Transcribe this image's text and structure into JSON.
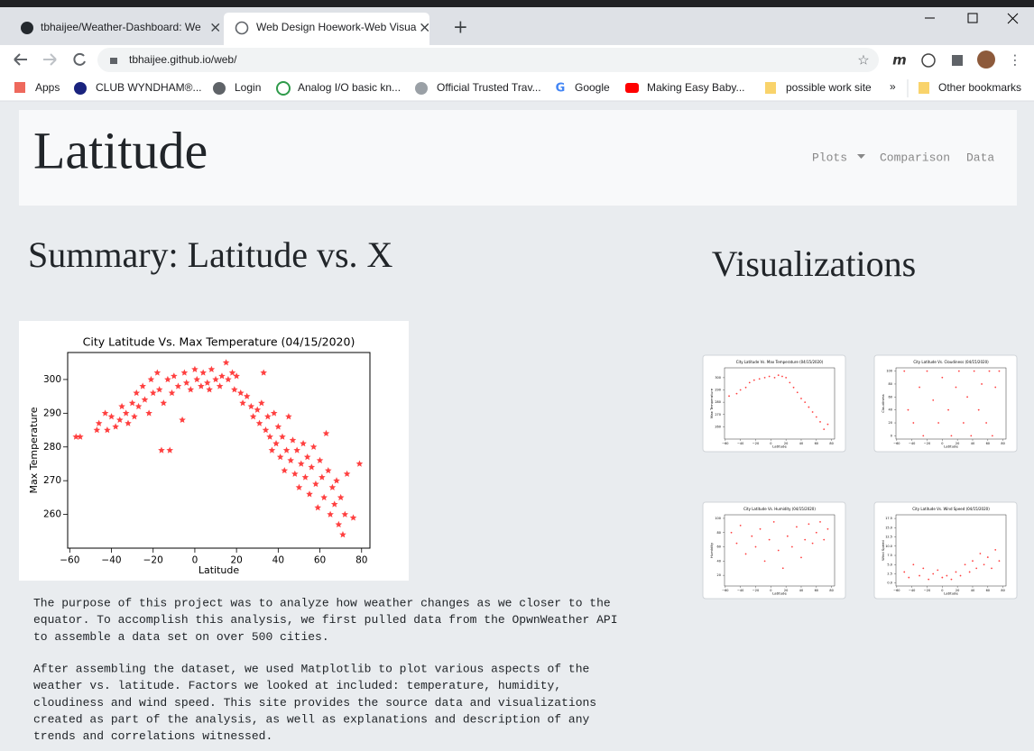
{
  "browser": {
    "tabs": [
      "tbhaijee/Weather-Dashboard: We",
      "Web Design Hoework-Web Visua"
    ],
    "url": "tbhaijee.github.io/web/",
    "bookmarks": [
      "Apps",
      "CLUB WYNDHAM®...",
      "Login",
      "Analog I/O basic kn...",
      "Official Trusted Trav...",
      "Google",
      "Making Easy Baby...",
      "possible work site"
    ],
    "more": "»",
    "other": "Other bookmarks"
  },
  "page": {
    "brand": "Latitude",
    "nav": [
      "Plots",
      "Comparison",
      "Data"
    ],
    "summary_heading": "Summary: Latitude vs. X",
    "visualizations_heading": "Visualizations",
    "paragraphs": [
      [
        "The purpose of this project was to analyze how weather changes as we closer to the",
        "equator. To accomplish this analysis, we first pulled data from the OpwnWeather API",
        "to assemble a data set on over 500 cities."
      ],
      [
        "After assembling the dataset, we used Matplotlib to plot various aspects of the",
        "weather vs. latitude. Factors we looked at included: temperature, humidity,",
        "cloudiness and wind speed. This site provides the source data and visualizations",
        "created as part of the analysis, as well as explanations and description of any",
        "trends and correlations witnessed."
      ]
    ]
  },
  "chart_data": [
    {
      "type": "scatter",
      "title": "City Latitude Vs. Max Temperature (04/15/2020)",
      "xlabel": "Latitude",
      "ylabel": "Max Temperature",
      "color": "#ff0000",
      "marker": "star",
      "x": [
        -57,
        -55,
        -47,
        -46,
        -43,
        -42,
        -40,
        -38,
        -36,
        -35,
        -33,
        -32,
        -30,
        -29,
        -28,
        -27,
        -25,
        -24,
        -22,
        -21,
        -20,
        -18,
        -17,
        -16,
        -15,
        -13,
        -12,
        -11,
        -10,
        -8,
        -6,
        -5,
        -4,
        -2,
        0,
        1,
        3,
        4,
        6,
        7,
        8,
        10,
        12,
        13,
        15,
        16,
        18,
        19,
        20,
        22,
        23,
        25,
        27,
        28,
        30,
        31,
        32,
        33,
        34,
        35,
        36,
        37,
        38,
        39,
        40,
        41,
        42,
        43,
        44,
        45,
        46,
        47,
        48,
        49,
        50,
        51,
        52,
        53,
        54,
        55,
        56,
        57,
        58,
        59,
        60,
        61,
        62,
        63,
        64,
        65,
        66,
        67,
        68,
        69,
        70,
        71,
        72,
        73,
        76,
        79
      ],
      "values": [
        283,
        283,
        285,
        287,
        290,
        285,
        289,
        286,
        288,
        292,
        290,
        287,
        293,
        289,
        296,
        292,
        298,
        294,
        290,
        300,
        296,
        302,
        297,
        279,
        293,
        300,
        279,
        296,
        301,
        298,
        288,
        302,
        299,
        297,
        303,
        300,
        298,
        302,
        299,
        297,
        303,
        300,
        298,
        301,
        305,
        300,
        302,
        297,
        301,
        296,
        293,
        295,
        292,
        289,
        291,
        287,
        293,
        302,
        285,
        289,
        283,
        279,
        290,
        281,
        286,
        277,
        283,
        273,
        279,
        289,
        276,
        282,
        272,
        279,
        268,
        275,
        281,
        271,
        277,
        266,
        274,
        280,
        269,
        262,
        276,
        271,
        265,
        284,
        273,
        260,
        268,
        263,
        270,
        257,
        265,
        254,
        260,
        272,
        259,
        275
      ],
      "xlim": [
        -61,
        84
      ],
      "ylim": [
        250,
        308
      ],
      "xticks": [
        {
          "value": -60,
          "label": "−60"
        },
        {
          "value": -40,
          "label": "−40"
        },
        {
          "value": -20,
          "label": "−20"
        },
        0,
        20,
        40,
        60,
        80
      ],
      "yticks": [
        260,
        270,
        280,
        290,
        300
      ]
    },
    {
      "type": "scatter",
      "title": "City Latitude Vs. Max Temperature (04/15/2020)",
      "xlabel": "Latitude",
      "ylabel": "Max Temperature",
      "color": "#ff0000",
      "marker": "dot",
      "x": [
        -55,
        -45,
        -40,
        -33,
        -28,
        -22,
        -15,
        -8,
        -2,
        5,
        10,
        15,
        20,
        25,
        30,
        35,
        40,
        45,
        50,
        55,
        60,
        65,
        70,
        75
      ],
      "values": [
        285,
        287,
        290,
        292,
        296,
        298,
        299,
        300,
        301,
        300,
        302,
        301,
        300,
        296,
        292,
        288,
        283,
        280,
        276,
        272,
        268,
        264,
        258,
        262
      ],
      "xlim": [
        -61,
        84
      ],
      "ylim": [
        250,
        308
      ],
      "xticks": [
        {
          "value": -60,
          "label": "−60"
        },
        {
          "value": -40,
          "label": "−40"
        },
        {
          "value": -20,
          "label": "−20"
        },
        0,
        20,
        40,
        60,
        80
      ],
      "yticks": [
        260,
        270,
        280,
        290,
        300
      ]
    },
    {
      "type": "scatter",
      "title": "City Latitude Vs. Cloudiness (04/15/2020)",
      "xlabel": "Latitude",
      "ylabel": "Cloudiness",
      "color": "#ff0000",
      "marker": "dot",
      "x": [
        -50,
        -45,
        -38,
        -30,
        -25,
        -20,
        -12,
        -5,
        0,
        8,
        12,
        18,
        22,
        28,
        33,
        38,
        42,
        48,
        52,
        58,
        62,
        66,
        70,
        75
      ],
      "values": [
        100,
        40,
        20,
        75,
        0,
        100,
        55,
        20,
        90,
        40,
        0,
        75,
        100,
        20,
        60,
        0,
        100,
        40,
        80,
        20,
        100,
        0,
        75,
        100
      ],
      "xlim": [
        -61,
        84
      ],
      "ylim": [
        -5,
        105
      ],
      "xticks": [
        {
          "value": -60,
          "label": "−60"
        },
        {
          "value": -40,
          "label": "−40"
        },
        {
          "value": -20,
          "label": "−20"
        },
        0,
        20,
        40,
        60,
        80
      ],
      "yticks": [
        0,
        20,
        40,
        60,
        80,
        100
      ]
    },
    {
      "type": "scatter",
      "title": "City Latitude Vs. Humidity (04/15/2020)",
      "xlabel": "Latitude",
      "ylabel": "Humidity",
      "color": "#ff0000",
      "marker": "dot",
      "x": [
        -52,
        -45,
        -40,
        -33,
        -25,
        -20,
        -14,
        -8,
        -2,
        4,
        10,
        16,
        22,
        28,
        34,
        40,
        45,
        50,
        55,
        60,
        65,
        70,
        75
      ],
      "values": [
        80,
        65,
        90,
        50,
        75,
        60,
        85,
        40,
        70,
        95,
        55,
        30,
        75,
        60,
        88,
        45,
        70,
        92,
        65,
        80,
        95,
        70,
        85
      ],
      "xlim": [
        -61,
        84
      ],
      "ylim": [
        5,
        105
      ],
      "xticks": [
        {
          "value": -60,
          "label": "−60"
        },
        {
          "value": -40,
          "label": "−40"
        },
        {
          "value": -20,
          "label": "−20"
        },
        0,
        20,
        40,
        60,
        80
      ],
      "yticks": [
        20,
        40,
        60,
        80,
        100
      ]
    },
    {
      "type": "scatter",
      "title": "City Latitude Vs. Wind Speed (04/15/2020)",
      "xlabel": "Latitude",
      "ylabel": "Wind Speed",
      "color": "#ff0000",
      "marker": "dot",
      "x": [
        -50,
        -44,
        -38,
        -30,
        -25,
        -18,
        -12,
        -6,
        0,
        6,
        12,
        18,
        24,
        30,
        36,
        40,
        45,
        50,
        55,
        60,
        65,
        70,
        75
      ],
      "values": [
        3,
        1.5,
        5,
        2,
        4,
        1,
        2.5,
        3.5,
        1.5,
        2,
        1,
        3,
        2,
        5,
        3,
        6,
        4,
        8,
        5,
        7,
        4,
        9,
        6
      ],
      "xlim": [
        -61,
        84
      ],
      "ylim": [
        -0.8,
        18.5
      ],
      "xticks": [
        {
          "value": -60,
          "label": "−60"
        },
        {
          "value": -40,
          "label": "−40"
        },
        {
          "value": -20,
          "label": "−20"
        },
        0,
        20,
        40,
        60,
        80
      ],
      "yticks": [
        {
          "value": 0,
          "label": "0.0"
        },
        {
          "value": 2.5,
          "label": "2.5"
        },
        {
          "value": 5,
          "label": "5.0"
        },
        {
          "value": 7.5,
          "label": "7.5"
        },
        {
          "value": 10,
          "label": "10.0"
        },
        {
          "value": 12.5,
          "label": "12.5"
        },
        {
          "value": 15,
          "label": "15.0"
        },
        {
          "value": 17.5,
          "label": "17.5"
        }
      ]
    }
  ]
}
